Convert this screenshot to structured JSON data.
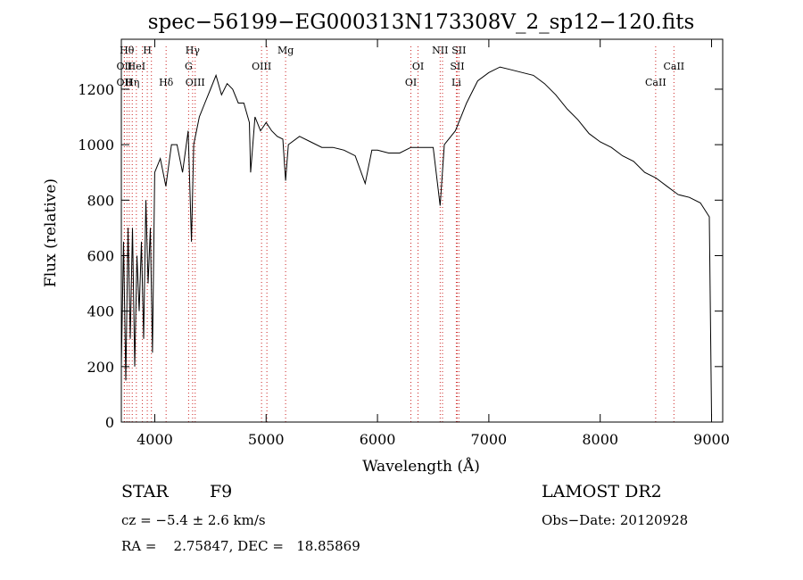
{
  "chart_data": {
    "type": "line",
    "title": "spec−56199−EG000313N173308V_2_sp12−120.fits",
    "xlabel": "Wavelength (Å)",
    "ylabel": "Flux (relative)",
    "xlim": [
      3700,
      9100
    ],
    "ylim": [
      0,
      1380
    ],
    "x_ticks": [
      4000,
      5000,
      6000,
      7000,
      8000,
      9000
    ],
    "y_ticks": [
      0,
      200,
      400,
      600,
      800,
      1000,
      1200
    ],
    "grid": false,
    "line_color": "#000000",
    "marker_line_color": "#cc2222",
    "series": [
      {
        "x": [
          3700,
          3720,
          3740,
          3760,
          3780,
          3800,
          3820,
          3840,
          3860,
          3880,
          3900,
          3920,
          3940,
          3960,
          3980,
          4000,
          4050,
          4100,
          4150,
          4200,
          4250,
          4300,
          4330,
          4350,
          4400,
          4450,
          4500,
          4550,
          4600,
          4650,
          4700,
          4750,
          4800,
          4850,
          4861,
          4900,
          4950,
          5000,
          5050,
          5100,
          5150,
          5175,
          5200,
          5300,
          5400,
          5500,
          5600,
          5700,
          5800,
          5890,
          5950,
          6000,
          6100,
          6200,
          6300,
          6400,
          6500,
          6563,
          6600,
          6700,
          6800,
          6900,
          7000,
          7100,
          7200,
          7300,
          7400,
          7500,
          7600,
          7700,
          7800,
          7900,
          8000,
          8100,
          8200,
          8300,
          8400,
          8500,
          8600,
          8700,
          8800,
          8900,
          8980,
          9000
        ],
        "y": [
          200,
          650,
          150,
          700,
          300,
          700,
          200,
          600,
          400,
          650,
          300,
          800,
          500,
          700,
          250,
          900,
          950,
          850,
          1000,
          1000,
          900,
          1050,
          650,
          1000,
          1100,
          1150,
          1200,
          1250,
          1180,
          1220,
          1200,
          1150,
          1150,
          1080,
          900,
          1100,
          1050,
          1080,
          1050,
          1030,
          1020,
          870,
          1000,
          1030,
          1010,
          990,
          990,
          980,
          960,
          860,
          980,
          980,
          970,
          970,
          990,
          990,
          990,
          780,
          1000,
          1050,
          1150,
          1230,
          1260,
          1280,
          1270,
          1260,
          1250,
          1220,
          1180,
          1130,
          1090,
          1040,
          1010,
          990,
          960,
          940,
          900,
          880,
          850,
          820,
          810,
          790,
          740,
          20
        ]
      }
    ],
    "lines": [
      {
        "x": 3727,
        "label": "OII",
        "row": 1
      },
      {
        "x": 3727,
        "label": "OII",
        "row": 2
      },
      {
        "x": 3750,
        "label": "Hθ",
        "row": 0
      },
      {
        "x": 3771,
        "label": "H",
        "row": 2
      },
      {
        "x": 3798,
        "label": "Hη",
        "row": 2
      },
      {
        "x": 3835,
        "label": "HeI",
        "row": 1
      },
      {
        "x": 3889,
        "label": "",
        "row": 0
      },
      {
        "x": 3933,
        "label": "H",
        "row": 0
      },
      {
        "x": 3970,
        "label": "",
        "row": 0
      },
      {
        "x": 4102,
        "label": "Hδ",
        "row": 2
      },
      {
        "x": 4304,
        "label": "G",
        "row": 1
      },
      {
        "x": 4340,
        "label": "Hγ",
        "row": 0
      },
      {
        "x": 4363,
        "label": "OIII",
        "row": 2
      },
      {
        "x": 4959,
        "label": "OIII",
        "row": 1
      },
      {
        "x": 5007,
        "label": "",
        "row": 0
      },
      {
        "x": 5175,
        "label": "Mg",
        "row": 0
      },
      {
        "x": 6300,
        "label": "OI",
        "row": 2
      },
      {
        "x": 6364,
        "label": "OI",
        "row": 1
      },
      {
        "x": 6563,
        "label": "NII",
        "row": 0
      },
      {
        "x": 6584,
        "label": "",
        "row": 0
      },
      {
        "x": 6708,
        "label": "Li",
        "row": 2
      },
      {
        "x": 6716,
        "label": "SII",
        "row": 1
      },
      {
        "x": 6731,
        "label": "SII",
        "row": 0
      },
      {
        "x": 8498,
        "label": "CaII",
        "row": 2
      },
      {
        "x": 8662,
        "label": "CaII",
        "row": 1
      }
    ]
  },
  "footer": {
    "object_class": "STAR",
    "subclass": "F9",
    "survey": "LAMOST DR2",
    "redshift": "cz = −5.4 ± 2.6 km/s",
    "obs_date": "Obs−Date: 20120928",
    "coords": "RA =    2.75847, DEC =   18.85869"
  }
}
